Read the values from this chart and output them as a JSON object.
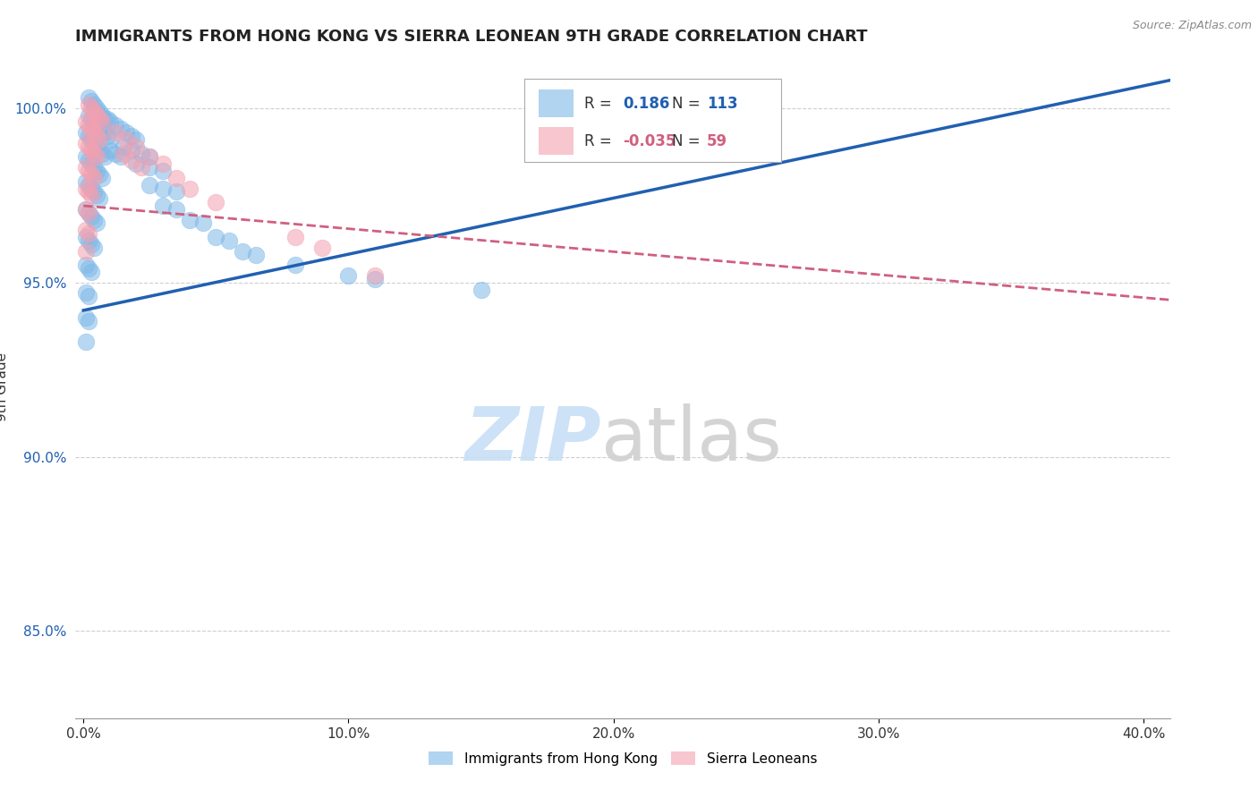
{
  "title": "IMMIGRANTS FROM HONG KONG VS SIERRA LEONEAN 9TH GRADE CORRELATION CHART",
  "source": "Source: ZipAtlas.com",
  "xlabel_ticks": [
    "0.0%",
    "10.0%",
    "20.0%",
    "30.0%",
    "40.0%"
  ],
  "xlabel_tick_vals": [
    0.0,
    0.1,
    0.2,
    0.3,
    0.4
  ],
  "ylabel": "9th Grade",
  "ylim": [
    0.825,
    1.015
  ],
  "xlim": [
    -0.003,
    0.41
  ],
  "ytick_vals": [
    0.85,
    0.9,
    0.95,
    1.0
  ],
  "ytick_labels": [
    "85.0%",
    "90.0%",
    "95.0%",
    "100.0%"
  ],
  "blue_color": "#7eb8e8",
  "pink_color": "#f4a0b0",
  "blue_line_color": "#2060b0",
  "pink_line_color": "#d06080",
  "R_blue": 0.186,
  "N_blue": 113,
  "R_pink": -0.035,
  "N_pink": 59,
  "legend_label_blue": "Immigrants from Hong Kong",
  "legend_label_pink": "Sierra Leoneans",
  "blue_line_x0": 0.0,
  "blue_line_y0": 0.942,
  "blue_line_x1": 0.41,
  "blue_line_y1": 1.008,
  "pink_line_x0": 0.0,
  "pink_line_y0": 0.972,
  "pink_line_x1": 0.41,
  "pink_line_y1": 0.945,
  "blue_scatter_x": [
    0.002,
    0.003,
    0.004,
    0.005,
    0.006,
    0.007,
    0.008,
    0.009,
    0.01,
    0.002,
    0.003,
    0.004,
    0.005,
    0.006,
    0.007,
    0.008,
    0.009,
    0.01,
    0.001,
    0.002,
    0.003,
    0.004,
    0.005,
    0.006,
    0.007,
    0.008,
    0.001,
    0.002,
    0.003,
    0.004,
    0.005,
    0.006,
    0.007,
    0.001,
    0.002,
    0.003,
    0.004,
    0.005,
    0.006,
    0.001,
    0.002,
    0.003,
    0.004,
    0.005,
    0.001,
    0.002,
    0.003,
    0.004,
    0.001,
    0.002,
    0.003,
    0.001,
    0.002,
    0.001,
    0.002,
    0.001,
    0.012,
    0.014,
    0.016,
    0.018,
    0.02,
    0.015,
    0.018,
    0.022,
    0.025,
    0.02,
    0.025,
    0.03,
    0.025,
    0.03,
    0.035,
    0.03,
    0.035,
    0.04,
    0.045,
    0.05,
    0.055,
    0.06,
    0.065,
    0.08,
    0.1,
    0.11,
    0.15,
    0.01,
    0.012,
    0.014
  ],
  "blue_scatter_y": [
    1.003,
    1.002,
    1.001,
    1.0,
    0.999,
    0.998,
    0.997,
    0.997,
    0.996,
    0.998,
    0.997,
    0.996,
    0.995,
    0.994,
    0.993,
    0.993,
    0.992,
    0.991,
    0.993,
    0.992,
    0.991,
    0.99,
    0.989,
    0.988,
    0.987,
    0.986,
    0.986,
    0.985,
    0.984,
    0.983,
    0.982,
    0.981,
    0.98,
    0.979,
    0.978,
    0.977,
    0.976,
    0.975,
    0.974,
    0.971,
    0.97,
    0.969,
    0.968,
    0.967,
    0.963,
    0.962,
    0.961,
    0.96,
    0.955,
    0.954,
    0.953,
    0.947,
    0.946,
    0.94,
    0.939,
    0.933,
    0.995,
    0.994,
    0.993,
    0.992,
    0.991,
    0.989,
    0.988,
    0.987,
    0.986,
    0.984,
    0.983,
    0.982,
    0.978,
    0.977,
    0.976,
    0.972,
    0.971,
    0.968,
    0.967,
    0.963,
    0.962,
    0.959,
    0.958,
    0.955,
    0.952,
    0.951,
    0.948,
    0.988,
    0.987,
    0.986
  ],
  "pink_scatter_x": [
    0.002,
    0.003,
    0.004,
    0.005,
    0.006,
    0.007,
    0.001,
    0.002,
    0.003,
    0.004,
    0.005,
    0.006,
    0.001,
    0.002,
    0.003,
    0.004,
    0.005,
    0.001,
    0.002,
    0.003,
    0.004,
    0.001,
    0.002,
    0.003,
    0.001,
    0.002,
    0.001,
    0.002,
    0.001,
    0.012,
    0.016,
    0.02,
    0.025,
    0.03,
    0.035,
    0.04,
    0.015,
    0.018,
    0.022,
    0.05,
    0.09,
    0.11,
    0.08
  ],
  "pink_scatter_y": [
    1.001,
    1.0,
    0.999,
    0.998,
    0.997,
    0.996,
    0.996,
    0.995,
    0.994,
    0.993,
    0.992,
    0.991,
    0.99,
    0.989,
    0.988,
    0.987,
    0.986,
    0.983,
    0.982,
    0.981,
    0.98,
    0.977,
    0.976,
    0.975,
    0.971,
    0.97,
    0.965,
    0.964,
    0.959,
    0.993,
    0.991,
    0.989,
    0.986,
    0.984,
    0.98,
    0.977,
    0.987,
    0.985,
    0.983,
    0.973,
    0.96,
    0.952,
    0.963
  ]
}
